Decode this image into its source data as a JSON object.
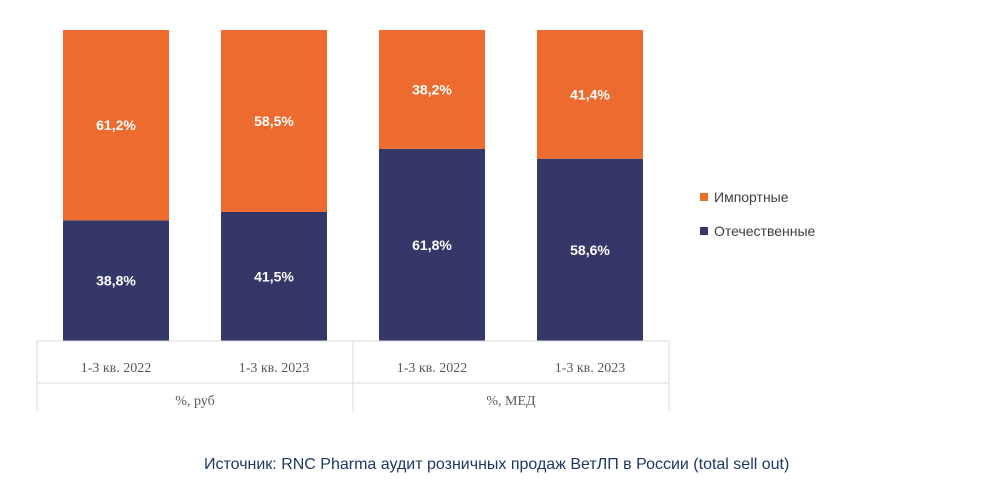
{
  "chart_data": {
    "type": "bar",
    "stacked": true,
    "categories": [
      "1-3 кв. 2022",
      "1-3 кв. 2023",
      "1-3 кв. 2022",
      "1-3 кв. 2023"
    ],
    "groups": [
      {
        "label": "%, руб",
        "categories": [
          0,
          1
        ]
      },
      {
        "label": "%, МЕД",
        "categories": [
          2,
          3
        ]
      }
    ],
    "series": [
      {
        "name": "Отечественные",
        "color": "#333868",
        "values": [
          38.8,
          41.5,
          61.8,
          58.6
        ],
        "labels": [
          "38,8%",
          "41,5%",
          "61,8%",
          "58,6%"
        ]
      },
      {
        "name": "Импортные",
        "color": "#ed6b2f",
        "values": [
          61.2,
          58.5,
          38.2,
          41.4
        ],
        "labels": [
          "61,2%",
          "58,5%",
          "38,2%",
          "41,4%"
        ]
      }
    ],
    "legend_order": [
      1,
      0
    ],
    "legend_position": "right",
    "ylim": [
      0,
      100
    ],
    "grid": false
  },
  "source_text": "Источник: RNC Pharma аудит розничных продаж ВетЛП в России (total sell out)"
}
